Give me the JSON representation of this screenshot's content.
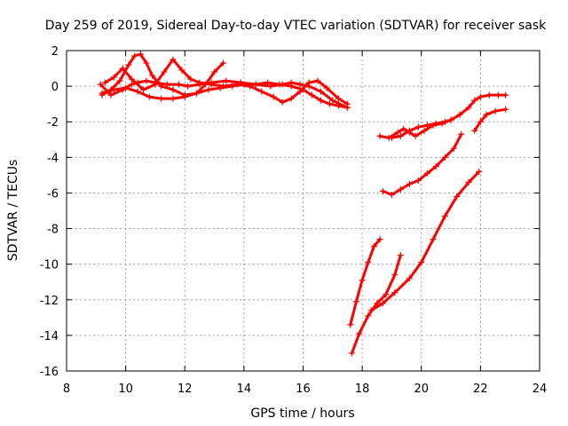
{
  "chart_data": {
    "type": "scatter",
    "title": "Day 259 of 2019, Sidereal Day-to-day VTEC variation (SDTVAR) for receiver sask",
    "xlabel": "GPS time / hours",
    "ylabel": "SDTVAR / TECUs",
    "xlim": [
      8,
      24
    ],
    "ylim": [
      -16,
      2
    ],
    "xticks": [
      8,
      10,
      12,
      14,
      16,
      18,
      20,
      22,
      24
    ],
    "yticks": [
      -16,
      -14,
      -12,
      -10,
      -8,
      -6,
      -4,
      -2,
      0,
      2
    ],
    "grid": true,
    "marker": "plus",
    "color": "#ff0000",
    "series": [
      {
        "x": [
          9.15,
          9.5,
          9.9,
          10.2,
          10.4,
          10.7,
          11.0,
          11.4,
          11.8,
          12.1,
          12.5,
          12.9,
          13.4,
          13.9,
          14.4,
          14.9,
          15.3,
          15.6,
          15.9,
          16.2,
          16.6,
          17.0,
          17.5
        ],
        "y": [
          0.1,
          -0.5,
          -0.2,
          0.1,
          0.2,
          0.3,
          0.2,
          0.1,
          0.1,
          0.0,
          0.1,
          0.2,
          0.3,
          0.2,
          0.1,
          0.0,
          0.1,
          0.2,
          0.1,
          0.0,
          -0.3,
          -0.8,
          -1.2
        ]
      },
      {
        "x": [
          9.2,
          9.5,
          9.8,
          10.1,
          10.3,
          10.5,
          10.7,
          10.9,
          11.2,
          11.6,
          12.0,
          12.4,
          12.7,
          13.0,
          13.3
        ],
        "y": [
          -0.5,
          -0.2,
          0.3,
          1.2,
          1.7,
          1.8,
          1.3,
          0.6,
          0.0,
          -0.2,
          -0.5,
          -0.4,
          0.1,
          0.8,
          1.3
        ]
      },
      {
        "x": [
          9.3,
          9.6,
          9.9,
          10.2,
          10.6,
          11.0,
          11.3,
          11.6,
          11.9,
          12.2,
          12.5,
          12.9,
          13.3,
          13.8,
          14.2,
          14.6,
          15.0,
          15.3,
          15.6,
          15.9,
          16.2,
          16.5,
          16.8,
          17.2,
          17.5
        ],
        "y": [
          0.2,
          0.5,
          1.0,
          0.4,
          -0.2,
          0.1,
          0.8,
          1.5,
          0.9,
          0.4,
          0.2,
          0.1,
          0.0,
          0.1,
          0.0,
          -0.3,
          -0.6,
          -0.9,
          -0.7,
          -0.3,
          0.2,
          0.3,
          -0.1,
          -0.7,
          -1.0
        ]
      },
      {
        "x": [
          9.2,
          9.6,
          10.0,
          10.4,
          10.8,
          11.2,
          11.6,
          12.0,
          12.4,
          12.8,
          13.2,
          13.6,
          14.0,
          14.4,
          14.8,
          15.2,
          15.6,
          16.0,
          16.3,
          16.6,
          16.9,
          17.2,
          17.5
        ],
        "y": [
          -0.4,
          -0.2,
          -0.1,
          -0.3,
          -0.6,
          -0.7,
          -0.7,
          -0.6,
          -0.4,
          -0.2,
          -0.1,
          0.0,
          0.1,
          0.1,
          0.2,
          0.1,
          0.0,
          -0.2,
          -0.5,
          -0.8,
          -1.0,
          -1.1,
          -1.2
        ]
      },
      {
        "x": [
          18.6,
          18.9,
          19.2,
          19.4,
          19.6,
          19.8,
          20.1,
          20.4,
          20.7,
          21.0,
          21.3,
          21.6,
          21.8,
          22.0,
          22.3,
          22.6,
          22.85
        ],
        "y": [
          -2.8,
          -2.9,
          -2.6,
          -2.4,
          -2.6,
          -2.8,
          -2.5,
          -2.2,
          -2.1,
          -1.9,
          -1.6,
          -1.2,
          -0.8,
          -0.6,
          -0.5,
          -0.5,
          -0.5
        ]
      },
      {
        "x": [
          19.0,
          19.3,
          19.6,
          19.9,
          20.2,
          20.5,
          20.8,
          21.0
        ],
        "y": [
          -2.9,
          -2.8,
          -2.5,
          -2.3,
          -2.2,
          -2.1,
          -2.0,
          -1.9
        ]
      },
      {
        "x": [
          18.7,
          19.0,
          19.3,
          19.6,
          19.9,
          20.2,
          20.5,
          20.8,
          21.1,
          21.35
        ],
        "y": [
          -5.9,
          -6.1,
          -5.8,
          -5.5,
          -5.3,
          -4.9,
          -4.5,
          -4.0,
          -3.5,
          -2.7
        ]
      },
      {
        "x": [
          21.8,
          22.0,
          22.2,
          22.5,
          22.85
        ],
        "y": [
          -2.5,
          -2.0,
          -1.6,
          -1.4,
          -1.3
        ]
      },
      {
        "x": [
          17.6,
          17.8,
          18.0,
          18.2,
          18.4,
          18.6
        ],
        "y": [
          -13.4,
          -12.1,
          -10.9,
          -9.9,
          -9.0,
          -8.6
        ]
      },
      {
        "x": [
          17.65,
          17.9,
          18.2,
          18.5,
          18.8,
          19.1,
          19.3
        ],
        "y": [
          -15.0,
          -13.9,
          -12.9,
          -12.2,
          -11.7,
          -10.6,
          -9.5
        ]
      },
      {
        "x": [
          18.3,
          18.7,
          19.1,
          19.6,
          20.0,
          20.4,
          20.8,
          21.2,
          21.6,
          21.95
        ],
        "y": [
          -12.6,
          -12.2,
          -11.6,
          -10.8,
          -9.9,
          -8.6,
          -7.3,
          -6.2,
          -5.4,
          -4.8
        ]
      }
    ]
  }
}
